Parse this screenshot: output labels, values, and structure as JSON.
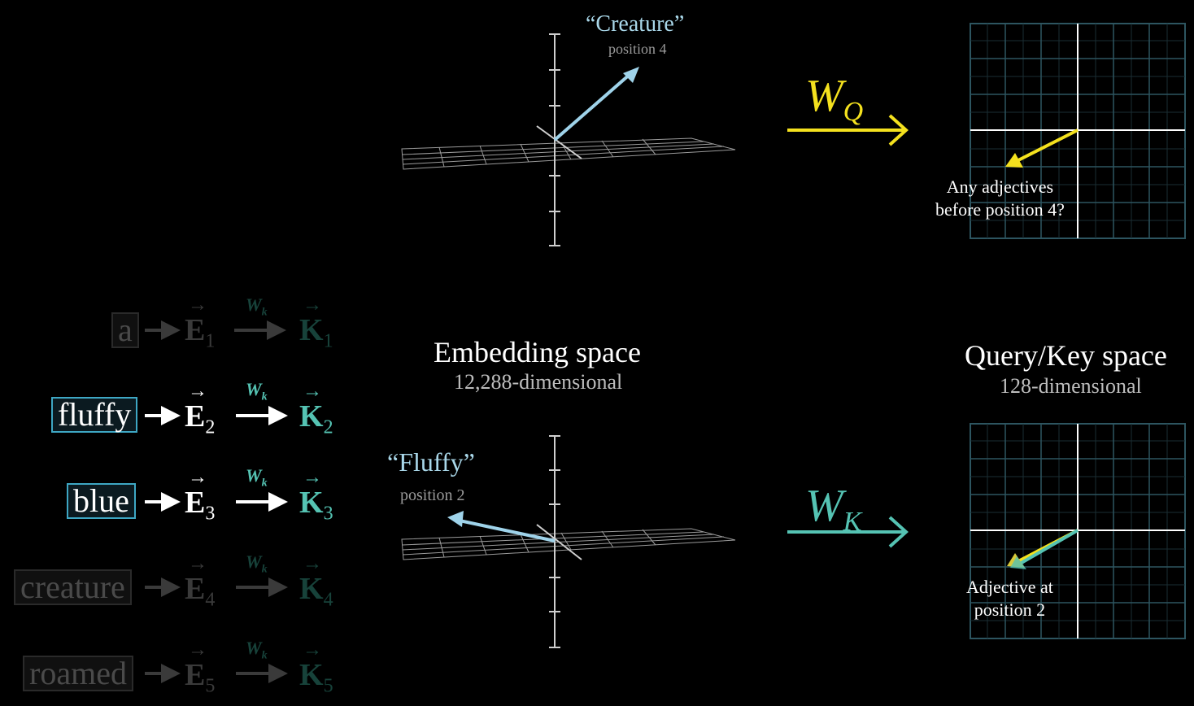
{
  "embedding": {
    "title": "Embedding space",
    "subtitle": "12,288-dimensional"
  },
  "qk_space": {
    "title": "Query/Key space",
    "subtitle": "128-dimensional"
  },
  "query_vector": {
    "word": "“Creature”",
    "position": "position 4",
    "note_line1": "Any adjectives",
    "note_line2": "before position 4?"
  },
  "key_vector": {
    "word": "“Fluffy”",
    "position": "position 2",
    "note_line1": "Adjective at",
    "note_line2": "position 2"
  },
  "maps": {
    "query": {
      "base": "W",
      "sub": "Q",
      "color": "#f4e11e"
    },
    "key": {
      "base": "W",
      "sub": "K",
      "color": "#55c3b3"
    }
  },
  "rows": [
    {
      "token": "a",
      "e": "E",
      "e_sub": "1",
      "w": "W",
      "w_sub": "k",
      "k": "K",
      "k_sub": "1",
      "active": false
    },
    {
      "token": "fluffy",
      "e": "E",
      "e_sub": "2",
      "w": "W",
      "w_sub": "k",
      "k": "K",
      "k_sub": "2",
      "active": true
    },
    {
      "token": "blue",
      "e": "E",
      "e_sub": "3",
      "w": "W",
      "w_sub": "k",
      "k": "K",
      "k_sub": "3",
      "active": true
    },
    {
      "token": "creature",
      "e": "E",
      "e_sub": "4",
      "w": "W",
      "w_sub": "k",
      "k": "K",
      "k_sub": "4",
      "active": false
    },
    {
      "token": "roamed",
      "e": "E",
      "e_sub": "5",
      "w": "W",
      "w_sub": "k",
      "k": "K",
      "k_sub": "5",
      "active": false
    }
  ],
  "colors": {
    "query": "#f4e11e",
    "key": "#55c3b3",
    "embedding_arrow": "#9fd3ea",
    "grid": "#2d5560"
  }
}
